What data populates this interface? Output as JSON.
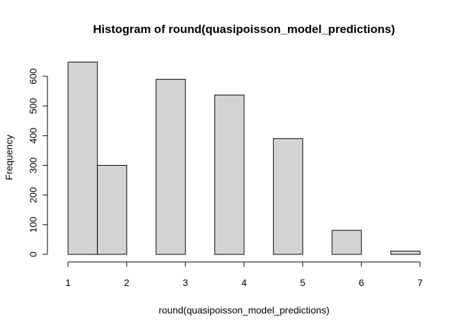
{
  "chart_data": {
    "type": "bar",
    "title": "Histogram of round(quasipoisson_model_predictions)",
    "xlabel": "round(quasipoisson_model_predictions)",
    "ylabel": "Frequency",
    "bins": [
      {
        "from": 1.0,
        "to": 1.5,
        "count": 648
      },
      {
        "from": 1.5,
        "to": 2.0,
        "count": 300
      },
      {
        "from": 2.0,
        "to": 2.5,
        "count": 0
      },
      {
        "from": 2.5,
        "to": 3.0,
        "count": 590
      },
      {
        "from": 3.0,
        "to": 3.5,
        "count": 0
      },
      {
        "from": 3.5,
        "to": 4.0,
        "count": 537
      },
      {
        "from": 4.0,
        "to": 4.5,
        "count": 0
      },
      {
        "from": 4.5,
        "to": 5.0,
        "count": 390
      },
      {
        "from": 5.0,
        "to": 5.5,
        "count": 0
      },
      {
        "from": 5.5,
        "to": 6.0,
        "count": 81
      },
      {
        "from": 6.0,
        "to": 6.5,
        "count": 0
      },
      {
        "from": 6.5,
        "to": 7.0,
        "count": 11
      }
    ],
    "xlim": [
      1,
      7
    ],
    "ylim": [
      0,
      650
    ],
    "x_ticks": [
      1,
      2,
      3,
      4,
      5,
      6,
      7
    ],
    "x_tick_labels": [
      "1",
      "2",
      "3",
      "4",
      "5",
      "6",
      "7"
    ],
    "y_ticks": [
      0,
      100,
      200,
      300,
      400,
      500,
      600
    ],
    "y_tick_labels": [
      "0",
      "100",
      "200",
      "300",
      "400",
      "500",
      "600"
    ],
    "bar_fill": "#d3d3d3",
    "bar_stroke": "#000000",
    "grid": false
  }
}
